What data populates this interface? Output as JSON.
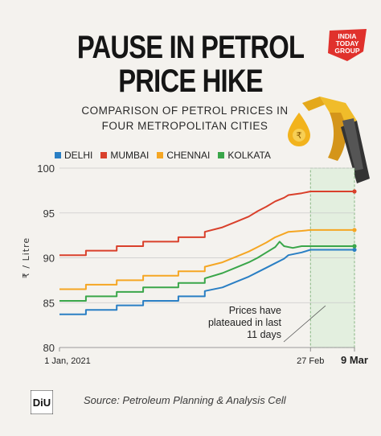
{
  "headline": {
    "line1": "PAUSE IN PETROL",
    "line2": "PRICE HIKE"
  },
  "subtitle": {
    "line1": "COMPARISON OF PETROL PRICES IN",
    "line2": "FOUR METROPOLITAN CITIES"
  },
  "brand": {
    "line1": "INDIA",
    "line2": "TODAY",
    "line3": "GROUP",
    "color": "#e0312c"
  },
  "footer": {
    "logo_text": "DiU",
    "source": "Source: Petroleum Planning & Analysis Cell"
  },
  "annotation": {
    "lines": [
      "Prices have",
      "plateaued in last",
      "11 days"
    ]
  },
  "icons": {
    "rupee_drop": "rupee-drop-icon",
    "fuel_nozzle": "fuel-nozzle-icon"
  },
  "chart_data": {
    "type": "line",
    "ylabel": "₹ / Litre",
    "ylim": [
      80,
      100
    ],
    "yticks": [
      80,
      85,
      90,
      95,
      100
    ],
    "x_tick_labels": [
      {
        "day": 0,
        "label": "1 Jan, 2021",
        "bold": false
      },
      {
        "day": 57,
        "label": "27 Feb",
        "bold": false
      },
      {
        "day": 67,
        "label": "9 Mar",
        "bold": true
      }
    ],
    "highlight_range_days": [
      57,
      67
    ],
    "grid": true,
    "legend_position": "top",
    "series": [
      {
        "name": "DELHI",
        "color": "#2a7fc4",
        "points": [
          [
            0,
            83.7
          ],
          [
            6,
            83.7
          ],
          [
            6,
            84.2
          ],
          [
            13,
            84.2
          ],
          [
            13,
            84.7
          ],
          [
            19,
            84.7
          ],
          [
            19,
            85.2
          ],
          [
            27,
            85.2
          ],
          [
            27,
            85.7
          ],
          [
            33,
            85.7
          ],
          [
            33,
            86.3
          ],
          [
            37,
            86.7
          ],
          [
            40,
            87.3
          ],
          [
            43,
            87.9
          ],
          [
            45,
            88.4
          ],
          [
            47,
            88.9
          ],
          [
            49,
            89.4
          ],
          [
            51,
            89.9
          ],
          [
            52,
            90.3
          ],
          [
            55,
            90.6
          ],
          [
            57,
            90.9
          ],
          [
            67,
            90.9
          ]
        ]
      },
      {
        "name": "MUMBAI",
        "color": "#d9402b",
        "points": [
          [
            0,
            90.3
          ],
          [
            6,
            90.3
          ],
          [
            6,
            90.8
          ],
          [
            13,
            90.8
          ],
          [
            13,
            91.3
          ],
          [
            19,
            91.3
          ],
          [
            19,
            91.8
          ],
          [
            27,
            91.8
          ],
          [
            27,
            92.3
          ],
          [
            33,
            92.3
          ],
          [
            33,
            92.9
          ],
          [
            37,
            93.4
          ],
          [
            40,
            94.0
          ],
          [
            43,
            94.6
          ],
          [
            45,
            95.2
          ],
          [
            47,
            95.7
          ],
          [
            49,
            96.3
          ],
          [
            51,
            96.7
          ],
          [
            52,
            97.0
          ],
          [
            55,
            97.2
          ],
          [
            57,
            97.4
          ],
          [
            67,
            97.4
          ]
        ]
      },
      {
        "name": "CHENNAI",
        "color": "#f5a623",
        "points": [
          [
            0,
            86.5
          ],
          [
            6,
            86.5
          ],
          [
            6,
            87.0
          ],
          [
            13,
            87.0
          ],
          [
            13,
            87.5
          ],
          [
            19,
            87.5
          ],
          [
            19,
            88.0
          ],
          [
            27,
            88.0
          ],
          [
            27,
            88.5
          ],
          [
            33,
            88.5
          ],
          [
            33,
            89.0
          ],
          [
            37,
            89.5
          ],
          [
            40,
            90.1
          ],
          [
            43,
            90.7
          ],
          [
            45,
            91.2
          ],
          [
            47,
            91.7
          ],
          [
            49,
            92.3
          ],
          [
            51,
            92.7
          ],
          [
            52,
            92.9
          ],
          [
            55,
            93.0
          ],
          [
            57,
            93.1
          ],
          [
            67,
            93.1
          ]
        ]
      },
      {
        "name": "KOLKATA",
        "color": "#3aa64a",
        "points": [
          [
            0,
            85.2
          ],
          [
            6,
            85.2
          ],
          [
            6,
            85.7
          ],
          [
            13,
            85.7
          ],
          [
            13,
            86.2
          ],
          [
            19,
            86.2
          ],
          [
            19,
            86.7
          ],
          [
            27,
            86.7
          ],
          [
            27,
            87.2
          ],
          [
            33,
            87.2
          ],
          [
            33,
            87.7
          ],
          [
            37,
            88.3
          ],
          [
            40,
            88.9
          ],
          [
            43,
            89.5
          ],
          [
            45,
            90.0
          ],
          [
            47,
            90.6
          ],
          [
            49,
            91.2
          ],
          [
            50,
            91.8
          ],
          [
            51,
            91.3
          ],
          [
            53,
            91.1
          ],
          [
            55,
            91.3
          ],
          [
            57,
            91.3
          ],
          [
            67,
            91.3
          ]
        ]
      }
    ]
  }
}
